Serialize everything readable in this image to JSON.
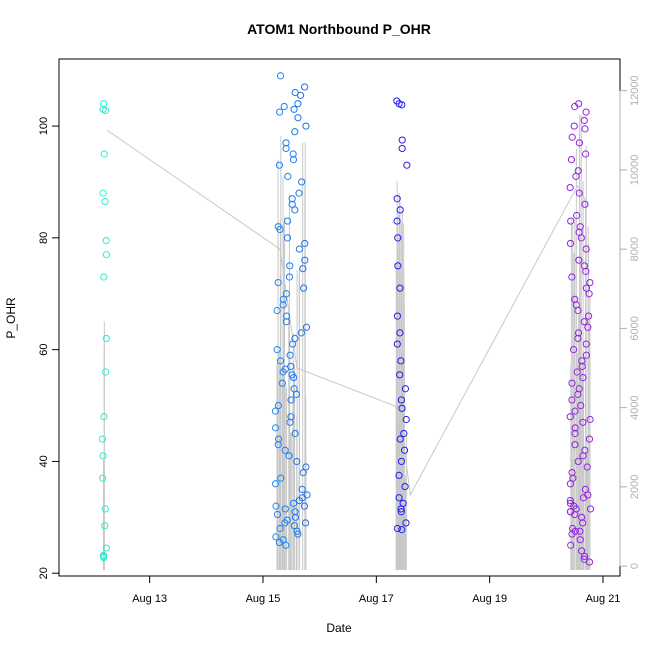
{
  "chart_data": {
    "type": "scatter",
    "title": "ATOM1 Northbound P_OHR",
    "xlabel": "Date",
    "ylabel": "P_OHR",
    "grid": false,
    "legend": "none",
    "x_ticks": [
      "Aug 13",
      "Aug 15",
      "Aug 17",
      "Aug 19",
      "Aug 21"
    ],
    "x_tick_days": [
      13,
      15,
      17,
      19,
      21
    ],
    "x_range_days": [
      11.4,
      21.3
    ],
    "ylim": [
      19.5,
      112
    ],
    "y_ticks": [
      20,
      40,
      60,
      80,
      100
    ],
    "right_axis": {
      "ticks": [
        0,
        2000,
        4000,
        6000,
        8000,
        10000,
        12000
      ],
      "range": [
        -250,
        12800
      ],
      "color": "#b0b0b0"
    },
    "colors": {
      "points_gradient": [
        "#2ff0d0",
        "#28c8ee",
        "#1f78f0",
        "#2020f0",
        "#7a22e8",
        "#9a25e0"
      ],
      "line": "#c8c8c8",
      "axis": "#000000"
    },
    "series": [
      {
        "date": "Aug 12",
        "day": 12.2,
        "spread": 0.04,
        "values": [
          104,
          103,
          102.8,
          95,
          88,
          86.5,
          79.5,
          77,
          73,
          62,
          56,
          48,
          44,
          41,
          37,
          31.5,
          28.5,
          24.5,
          23,
          22.8,
          23.2
        ]
      },
      {
        "date": "Aug 15",
        "day": 15.5,
        "spread": 0.28,
        "values": [
          109,
          107,
          106,
          105.5,
          104,
          103.5,
          103,
          102.5,
          101.5,
          100,
          99,
          97,
          96,
          95,
          94,
          93,
          91,
          90,
          88,
          87,
          86,
          85,
          83,
          82,
          81.5,
          80,
          79,
          78,
          76,
          75,
          74.5,
          73,
          72,
          71,
          70,
          69,
          68,
          67,
          66,
          65,
          64,
          63,
          62,
          61,
          60,
          59,
          58,
          57,
          56.5,
          56,
          55.5,
          55,
          54,
          53,
          52,
          51,
          50,
          49,
          48,
          47,
          46,
          45,
          44,
          43,
          42,
          41,
          40,
          39,
          38,
          37,
          36,
          35,
          34,
          33.5,
          33,
          32.5,
          32,
          32,
          31.5,
          31,
          30.5,
          30,
          29.5,
          29,
          29,
          28.5,
          28,
          27.5,
          27,
          26.5,
          26,
          25.5,
          25
        ]
      },
      {
        "date": "Aug 17",
        "day": 17.45,
        "spread": 0.1,
        "values": [
          104.5,
          104,
          103.8,
          97.5,
          96,
          93,
          87,
          85,
          83,
          80,
          75,
          71,
          66,
          63,
          61,
          58,
          55.5,
          53,
          51,
          49.5,
          47.5,
          45,
          44,
          42,
          40,
          37.5,
          35.5,
          33.5,
          32.5,
          31.5,
          31,
          29,
          28,
          27.8
        ]
      },
      {
        "date": "Aug 20",
        "day": 20.6,
        "spread": 0.18,
        "values": [
          104,
          103.5,
          102.5,
          101,
          100,
          99.5,
          98,
          97,
          95,
          94,
          92,
          91,
          89,
          88,
          86,
          84,
          83,
          82,
          81,
          80,
          79,
          78,
          76,
          75,
          74,
          73,
          72,
          71,
          70,
          69,
          68,
          67,
          66,
          65,
          64,
          63,
          62,
          61,
          60,
          59,
          58,
          57,
          56,
          55,
          54,
          53,
          52,
          51,
          50,
          49,
          48,
          47.5,
          47,
          46,
          45,
          44,
          43,
          42,
          41,
          40,
          39,
          38,
          37,
          36,
          35,
          34,
          33.5,
          33,
          32.5,
          32,
          31.5,
          31.5,
          31,
          31,
          30.5,
          30,
          29,
          28,
          27.5,
          27.5,
          27,
          26,
          25,
          24,
          23,
          22.5,
          22
        ]
      }
    ]
  }
}
